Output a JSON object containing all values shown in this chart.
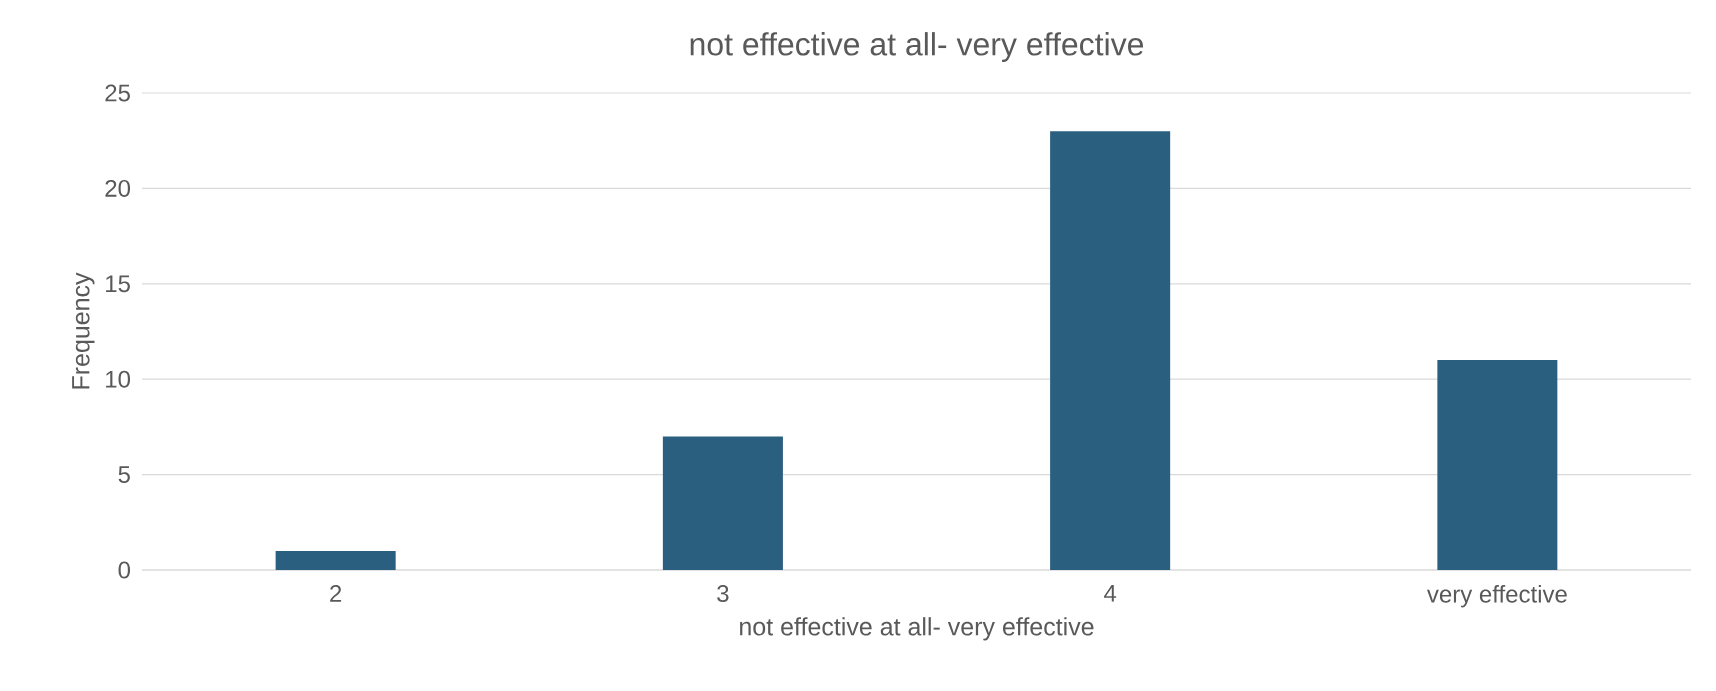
{
  "chart_data": {
    "type": "bar",
    "title": "not effective at all- very effective",
    "xlabel": "not effective at all- very effective",
    "ylabel": "Frequency",
    "categories": [
      "2",
      "3",
      "4",
      "very effective"
    ],
    "values": [
      1,
      7,
      23,
      11
    ],
    "color": "#2a5f80",
    "ylim": [
      0,
      25
    ],
    "yticks": [
      0,
      5,
      10,
      15,
      20,
      25
    ],
    "grid": "y"
  }
}
